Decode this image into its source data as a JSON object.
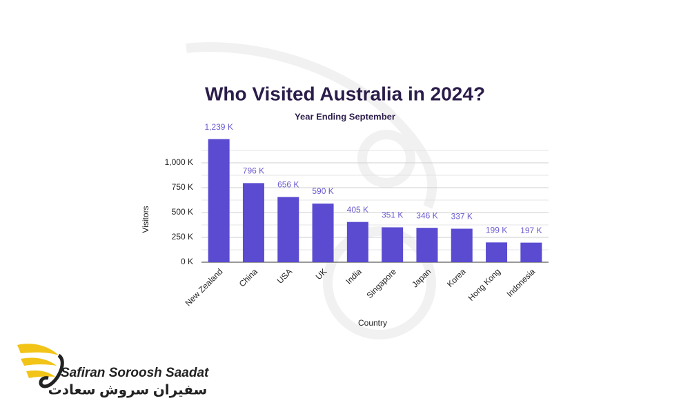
{
  "chart_data": {
    "type": "bar",
    "title": "Who Visited Australia in 2024?",
    "subtitle": "Year Ending September",
    "x_label": "Country",
    "y_label": "Visitors",
    "categories": [
      "New Zealand",
      "China",
      "USA",
      "UK",
      "India",
      "Singapore",
      "Japan",
      "Korea",
      "Hong Kong",
      "Indonesia"
    ],
    "values": [
      1239,
      796,
      656,
      590,
      405,
      351,
      346,
      337,
      199,
      197
    ],
    "value_labels": [
      "1,239 K",
      "796 K",
      "656 K",
      "590 K",
      "405 K",
      "351 K",
      "346 K",
      "337 K",
      "199 K",
      "197 K"
    ],
    "color": "#5a4bd1",
    "ylim": [
      0,
      1125
    ],
    "yticks": [
      {
        "value": 0,
        "label": "0 K"
      },
      {
        "value": 250,
        "label": "250 K"
      },
      {
        "value": 500,
        "label": "500 K"
      },
      {
        "value": 750,
        "label": "750 K"
      },
      {
        "value": 1000,
        "label": "1,000 K"
      }
    ],
    "minor_yticks": [
      125,
      375,
      625,
      875,
      1125
    ],
    "grid": true
  },
  "logo": {
    "name": "Safiran Soroosh Saadat",
    "name_persian": "سفیران سروش سعادت"
  }
}
